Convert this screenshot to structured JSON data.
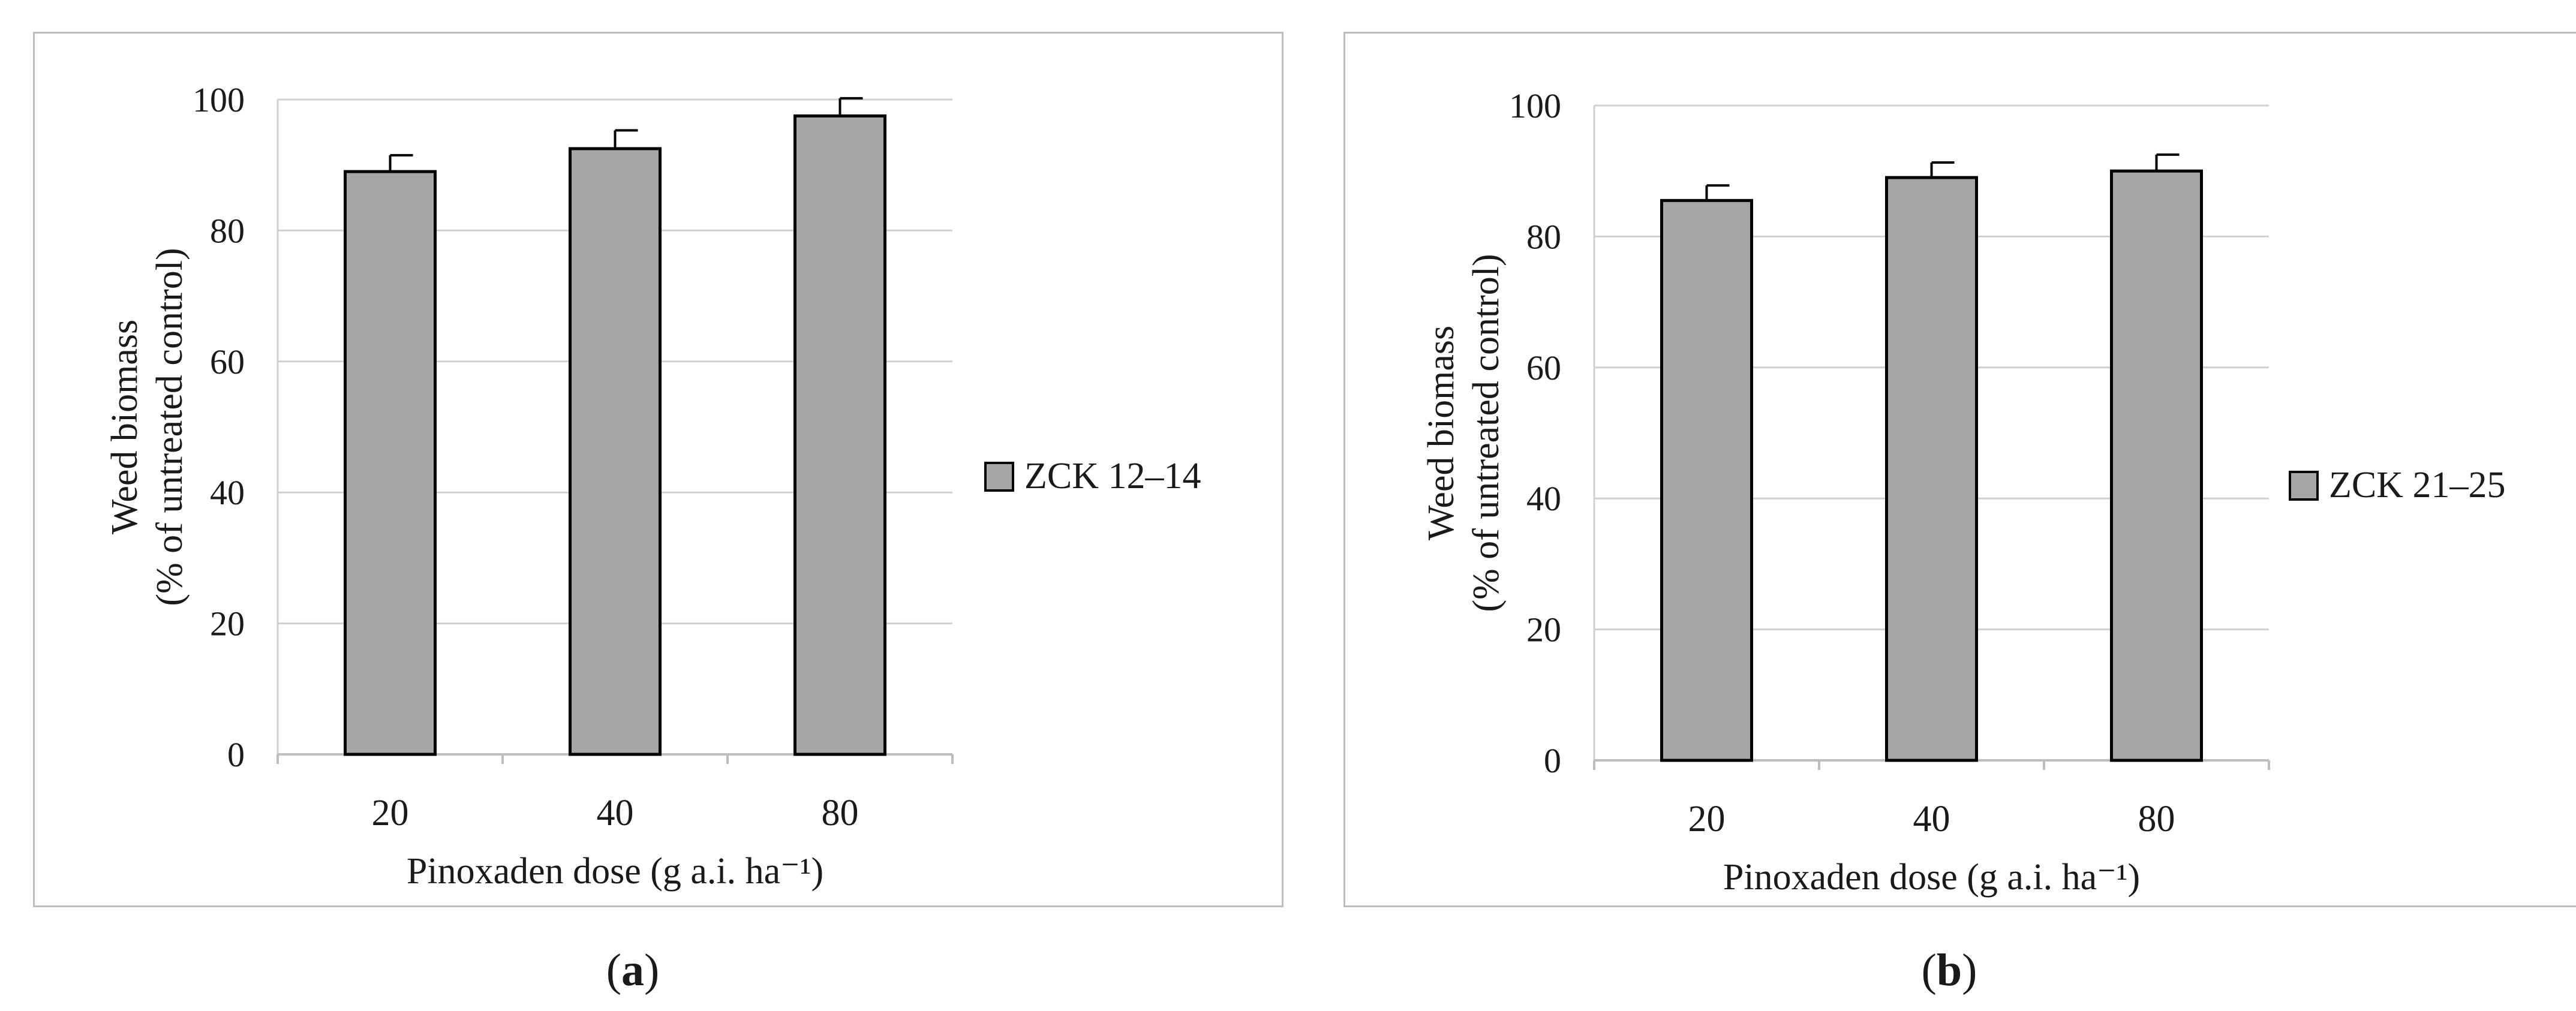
{
  "chart_data": [
    {
      "type": "bar",
      "panel": "a",
      "categories": [
        "20",
        "40",
        "80"
      ],
      "series": [
        {
          "name": "ZCK 12–14",
          "values": [
            89,
            92.5,
            97.5
          ],
          "errors": [
            2.5,
            2.8,
            2.7
          ]
        }
      ],
      "xlabel": "Pinoxaden dose (g a.i. ha⁻¹)",
      "ylabel_line1": "Weed biomass",
      "ylabel_line2": "(% of untreated control)",
      "ylim": [
        0,
        100
      ],
      "yticks": [
        0,
        20,
        40,
        60,
        80,
        100
      ],
      "grid": true,
      "legend": "right",
      "colors": {
        "bar": "#a6a6a6",
        "outline": "#000000",
        "grid": "#d0d0d0"
      }
    },
    {
      "type": "bar",
      "panel": "b",
      "categories": [
        "20",
        "40",
        "80"
      ],
      "series": [
        {
          "name": "ZCK 21–25",
          "values": [
            85.5,
            89,
            90
          ],
          "errors": [
            2.3,
            2.3,
            2.5
          ]
        }
      ],
      "xlabel": "Pinoxaden dose (g a.i. ha⁻¹)",
      "ylabel_line1": "Weed biomass",
      "ylabel_line2": "(% of untreated control)",
      "ylim": [
        0,
        100
      ],
      "yticks": [
        0,
        20,
        40,
        60,
        80,
        100
      ],
      "grid": true,
      "legend": "right",
      "colors": {
        "bar": "#a6a6a6",
        "outline": "#000000",
        "grid": "#d0d0d0"
      }
    }
  ],
  "panel_labels": {
    "a": "a",
    "b": "b"
  }
}
